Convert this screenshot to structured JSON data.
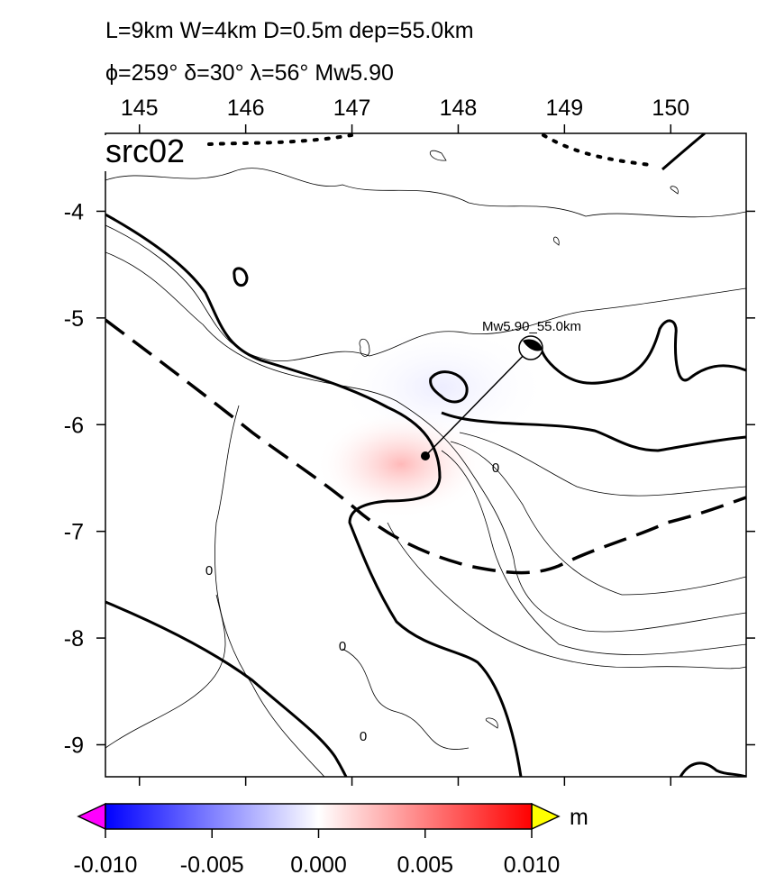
{
  "title_lines": [
    "L=9km W=4km D=0.5m dep=55.0km",
    "ϕ=259° δ=30° λ=56° Mw5.90"
  ],
  "panel_label": "src02",
  "event_label": "Mw5.90_55.0km",
  "map": {
    "xlim": [
      144.68,
      150.71
    ],
    "ylim": [
      -9.3,
      -3.27
    ],
    "xticks": [
      145,
      146,
      147,
      148,
      149,
      150
    ],
    "yticks": [
      -4,
      -5,
      -6,
      -7,
      -8,
      -9
    ]
  },
  "contour_labels": [
    "0",
    "0",
    "0",
    "0"
  ],
  "colorbar": {
    "lim": [
      -0.01,
      0.01
    ],
    "ticks": [
      {
        "value": -0.01,
        "label": "-0.010"
      },
      {
        "value": -0.005,
        "label": "-0.005"
      },
      {
        "value": 0,
        "label": "0.000"
      },
      {
        "value": 0.005,
        "label": "0.005"
      },
      {
        "value": 0.01,
        "label": "0.010"
      }
    ],
    "unit": "m",
    "colors": [
      "#0000ff",
      "#ffffff",
      "#ff0000"
    ],
    "low_color": "#ff00ff",
    "high_color": "#ffff00"
  }
}
